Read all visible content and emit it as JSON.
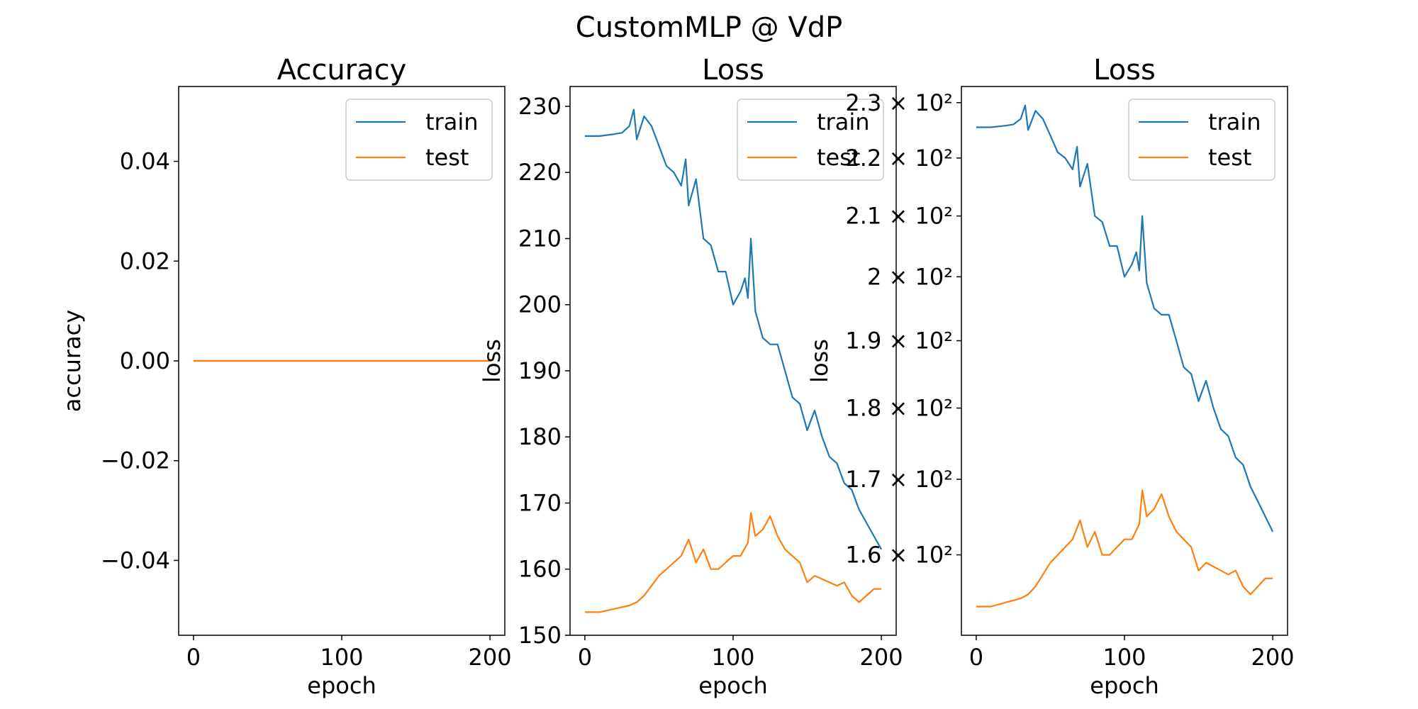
{
  "figure": {
    "suptitle": "CustomMLP @ VdP"
  },
  "chart_data": [
    {
      "type": "line",
      "title": "Accuracy",
      "xlabel": "epoch",
      "ylabel": "accuracy",
      "xlim": [
        -10,
        210
      ],
      "ylim": [
        -0.055,
        0.055
      ],
      "xticks": [
        0,
        100,
        200
      ],
      "xtick_labels": [
        "0",
        "100",
        "200"
      ],
      "yticks": [
        -0.04,
        -0.02,
        0.0,
        0.02,
        0.04
      ],
      "ytick_labels": [
        "−0.04",
        "−0.02",
        "0.00",
        "0.02",
        "0.04"
      ],
      "yscale": "linear",
      "grid": false,
      "legend_position": "upper right",
      "legend": [
        "train",
        "test"
      ],
      "series": [
        {
          "name": "train",
          "color": "#1f77b4",
          "x": [
            0,
            200
          ],
          "y": [
            0,
            0
          ]
        },
        {
          "name": "test",
          "color": "#ff7f0e",
          "x": [
            0,
            200
          ],
          "y": [
            0,
            0
          ]
        }
      ]
    },
    {
      "type": "line",
      "title": "Loss",
      "xlabel": "epoch",
      "ylabel": "loss",
      "xlim": [
        -10,
        210
      ],
      "ylim": [
        150,
        233
      ],
      "xticks": [
        0,
        100,
        200
      ],
      "xtick_labels": [
        "0",
        "100",
        "200"
      ],
      "yticks": [
        150,
        160,
        170,
        180,
        190,
        200,
        210,
        220,
        230
      ],
      "ytick_labels": [
        "150",
        "160",
        "170",
        "180",
        "190",
        "200",
        "210",
        "220",
        "230"
      ],
      "yscale": "linear",
      "grid": false,
      "legend_position": "upper right",
      "legend": [
        "train",
        "test"
      ],
      "series": [
        {
          "name": "train",
          "color": "#1f77b4",
          "x": [
            0,
            10,
            20,
            25,
            30,
            33,
            35,
            40,
            45,
            50,
            55,
            60,
            65,
            68,
            70,
            75,
            80,
            85,
            90,
            95,
            100,
            105,
            108,
            110,
            112,
            115,
            120,
            125,
            130,
            135,
            140,
            145,
            150,
            155,
            160,
            165,
            170,
            175,
            180,
            185,
            190,
            195,
            200
          ],
          "y": [
            225.5,
            225.5,
            225.8,
            226,
            227,
            229.5,
            225,
            228.5,
            227,
            224,
            221,
            220,
            218,
            222,
            215,
            219,
            210,
            209,
            205,
            205,
            200,
            202,
            204,
            201,
            210,
            199,
            195,
            194,
            194,
            190,
            186,
            185,
            181,
            184,
            180,
            177,
            176,
            173,
            172,
            169,
            167,
            165,
            163
          ]
        },
        {
          "name": "test",
          "color": "#ff7f0e",
          "x": [
            0,
            10,
            20,
            30,
            35,
            40,
            45,
            50,
            55,
            60,
            65,
            70,
            75,
            80,
            85,
            90,
            95,
            100,
            105,
            110,
            112,
            115,
            120,
            125,
            130,
            135,
            140,
            145,
            150,
            155,
            160,
            165,
            170,
            175,
            180,
            185,
            190,
            195,
            200
          ],
          "y": [
            153.5,
            153.5,
            154,
            154.5,
            155,
            156,
            157.5,
            159,
            160,
            161,
            162,
            164.5,
            161,
            163,
            160,
            160,
            161,
            162,
            162,
            164,
            168.5,
            165,
            166,
            168,
            165,
            163,
            162,
            161,
            158,
            159,
            158.5,
            158,
            157.5,
            158,
            156,
            155,
            156,
            157,
            157
          ]
        }
      ]
    },
    {
      "type": "line",
      "title": "Loss",
      "xlabel": "epoch",
      "ylabel": "loss",
      "xlim": [
        -10,
        210
      ],
      "ylim": [
        150,
        233
      ],
      "xticks": [
        0,
        100,
        200
      ],
      "xtick_labels": [
        "0",
        "100",
        "200"
      ],
      "yticks": [
        160,
        170,
        180,
        190,
        200,
        210,
        220,
        230
      ],
      "ytick_labels": [
        "1.6 × 10²",
        "1.7 × 10²",
        "1.8 × 10²",
        "1.9 × 10²",
        "2 × 10²",
        "2.1 × 10²",
        "2.2 × 10²",
        "2.3 × 10²"
      ],
      "yscale": "log",
      "grid": false,
      "legend_position": "upper right",
      "legend": [
        "train",
        "test"
      ],
      "series": [
        {
          "name": "train",
          "color": "#1f77b4",
          "x": [
            0,
            10,
            20,
            25,
            30,
            33,
            35,
            40,
            45,
            50,
            55,
            60,
            65,
            68,
            70,
            75,
            80,
            85,
            90,
            95,
            100,
            105,
            108,
            110,
            112,
            115,
            120,
            125,
            130,
            135,
            140,
            145,
            150,
            155,
            160,
            165,
            170,
            175,
            180,
            185,
            190,
            195,
            200
          ],
          "y": [
            225.5,
            225.5,
            225.8,
            226,
            227,
            229.5,
            225,
            228.5,
            227,
            224,
            221,
            220,
            218,
            222,
            215,
            219,
            210,
            209,
            205,
            205,
            200,
            202,
            204,
            201,
            210,
            199,
            195,
            194,
            194,
            190,
            186,
            185,
            181,
            184,
            180,
            177,
            176,
            173,
            172,
            169,
            167,
            165,
            163
          ]
        },
        {
          "name": "test",
          "color": "#ff7f0e",
          "x": [
            0,
            10,
            20,
            30,
            35,
            40,
            45,
            50,
            55,
            60,
            65,
            70,
            75,
            80,
            85,
            90,
            95,
            100,
            105,
            110,
            112,
            115,
            120,
            125,
            130,
            135,
            140,
            145,
            150,
            155,
            160,
            165,
            170,
            175,
            180,
            185,
            190,
            195,
            200
          ],
          "y": [
            153.5,
            153.5,
            154,
            154.5,
            155,
            156,
            157.5,
            159,
            160,
            161,
            162,
            164.5,
            161,
            163,
            160,
            160,
            161,
            162,
            162,
            164,
            168.5,
            165,
            166,
            168,
            165,
            163,
            162,
            161,
            158,
            159,
            158.5,
            158,
            157.5,
            158,
            156,
            155,
            156,
            157,
            157
          ]
        }
      ]
    }
  ]
}
